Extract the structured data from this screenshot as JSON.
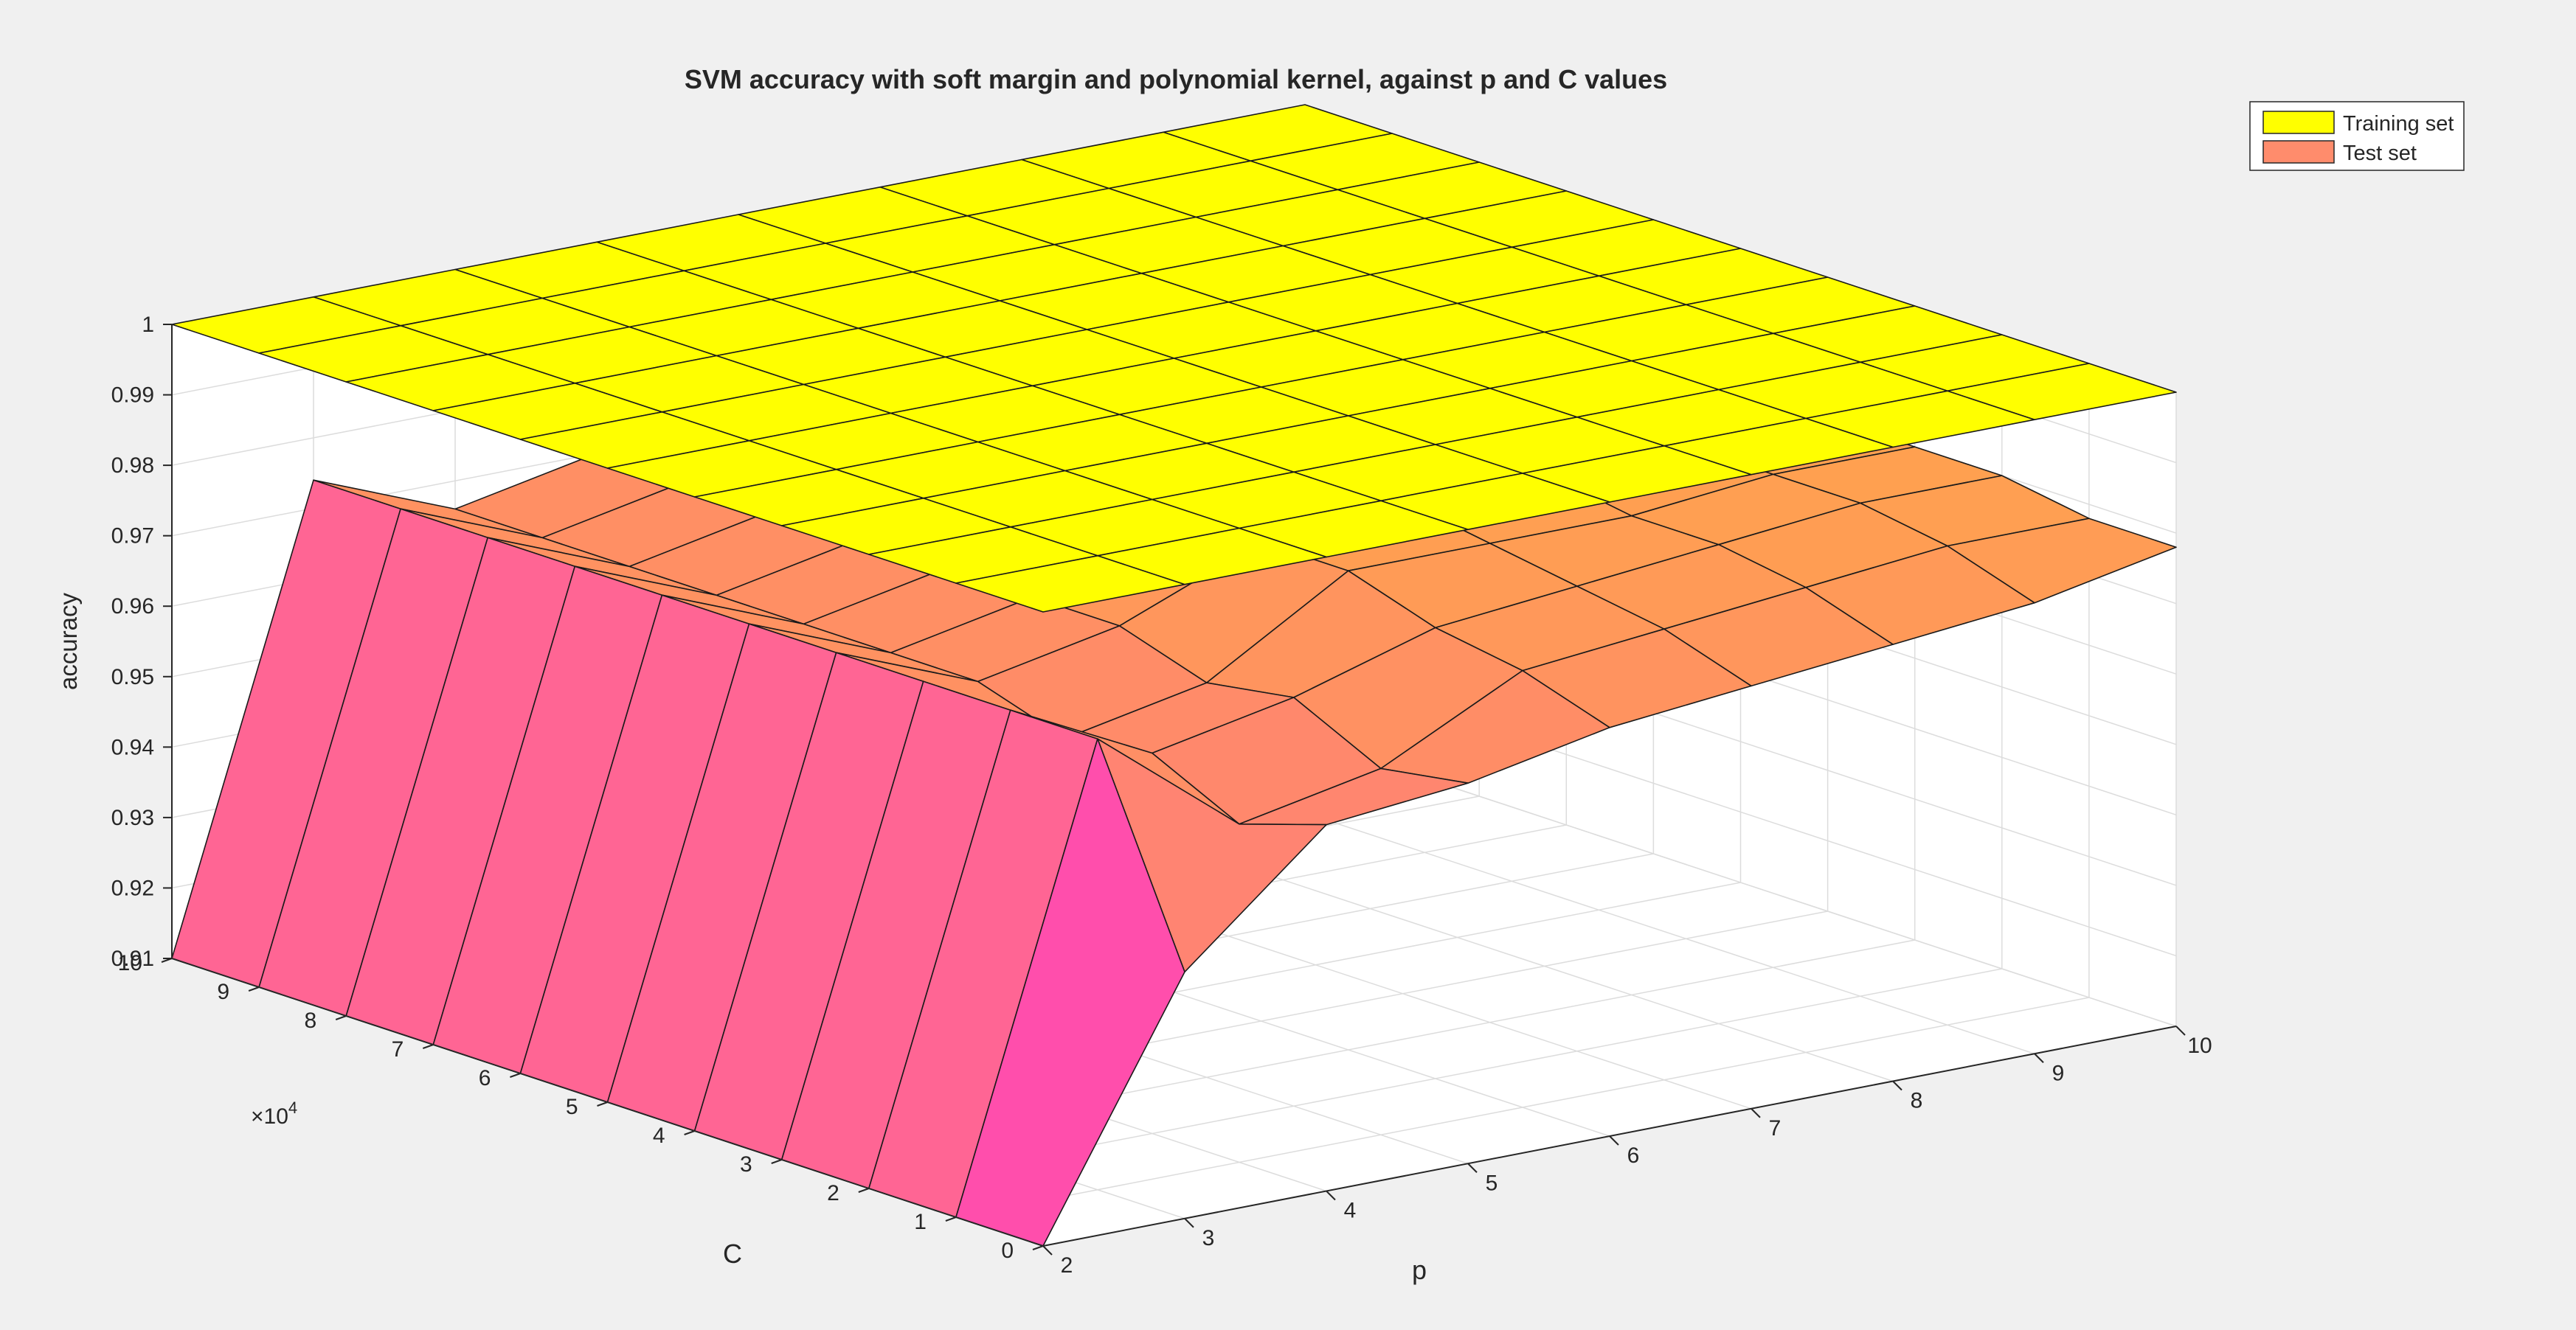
{
  "chart_data": {
    "type": "surface3d",
    "title": "SVM accuracy with soft margin and polynomial kernel, against p and C values",
    "xlabel": "p",
    "ylabel": "C",
    "ylabel_exponent": "×10",
    "ylabel_exponent_power": "4",
    "zlabel": "accuracy",
    "xlim": [
      2,
      10
    ],
    "ylim": [
      0,
      10
    ],
    "zlim": [
      0.91,
      1
    ],
    "x_ticks": [
      "2",
      "3",
      "4",
      "5",
      "6",
      "7",
      "8",
      "9",
      "10"
    ],
    "y_ticks": [
      "0",
      "1",
      "2",
      "3",
      "4",
      "5",
      "6",
      "7",
      "8",
      "9",
      "10"
    ],
    "z_ticks": [
      "0.91",
      "0.92",
      "0.93",
      "0.94",
      "0.95",
      "0.96",
      "0.97",
      "0.98",
      "0.99",
      "1"
    ],
    "grid": true,
    "legend": {
      "position": "top-right",
      "entries": [
        "Training set",
        "Test set"
      ]
    },
    "colors": {
      "training": "#ffff00",
      "test_high": "#ffa050",
      "test_mid": "#ff6f8a",
      "test_low": "#ff00ff",
      "background": "#f0f0f0",
      "axes": "#ffffff",
      "grid": "#dcdcdc"
    },
    "p": [
      2,
      3,
      4,
      5,
      6,
      7,
      8,
      9,
      10
    ],
    "C": [
      1,
      10000,
      20000,
      30000,
      40000,
      50000,
      60000,
      70000,
      80000,
      90000,
      100000
    ],
    "series": [
      {
        "name": "Training set",
        "z": [
          [
            1.0,
            1.0,
            1.0,
            1.0,
            1.0,
            1.0,
            1.0,
            1.0,
            1.0,
            1.0,
            1.0
          ],
          [
            1.0,
            1.0,
            1.0,
            1.0,
            1.0,
            1.0,
            1.0,
            1.0,
            1.0,
            1.0,
            1.0
          ],
          [
            1.0,
            1.0,
            1.0,
            1.0,
            1.0,
            1.0,
            1.0,
            1.0,
            1.0,
            1.0,
            1.0
          ],
          [
            1.0,
            1.0,
            1.0,
            1.0,
            1.0,
            1.0,
            1.0,
            1.0,
            1.0,
            1.0,
            1.0
          ],
          [
            1.0,
            1.0,
            1.0,
            1.0,
            1.0,
            1.0,
            1.0,
            1.0,
            1.0,
            1.0,
            1.0
          ],
          [
            1.0,
            1.0,
            1.0,
            1.0,
            1.0,
            1.0,
            1.0,
            1.0,
            1.0,
            1.0,
            1.0
          ],
          [
            1.0,
            1.0,
            1.0,
            1.0,
            1.0,
            1.0,
            1.0,
            1.0,
            1.0,
            1.0,
            1.0
          ],
          [
            1.0,
            1.0,
            1.0,
            1.0,
            1.0,
            1.0,
            1.0,
            1.0,
            1.0,
            1.0,
            1.0
          ],
          [
            1.0,
            1.0,
            1.0,
            1.0,
            1.0,
            1.0,
            1.0,
            1.0,
            1.0,
            1.0,
            1.0
          ]
        ]
      },
      {
        "name": "Test set",
        "z": [
          [
            0.91,
            0.91,
            0.91,
            0.91,
            0.91,
            0.91,
            0.91,
            0.91,
            0.91,
            0.91,
            0.91
          ],
          [
            0.945,
            0.974,
            0.974,
            0.974,
            0.974,
            0.974,
            0.974,
            0.974,
            0.974,
            0.974,
            0.974
          ],
          [
            0.962,
            0.958,
            0.964,
            0.962,
            0.966,
            0.966,
            0.966,
            0.966,
            0.966,
            0.966,
            0.966
          ],
          [
            0.964,
            0.962,
            0.968,
            0.966,
            0.97,
            0.97,
            0.97,
            0.97,
            0.97,
            0.97,
            0.97
          ],
          [
            0.968,
            0.972,
            0.974,
            0.978,
            0.978,
            0.978,
            0.978,
            0.978,
            0.978,
            0.978,
            0.978
          ],
          [
            0.97,
            0.974,
            0.976,
            0.978,
            0.98,
            0.98,
            0.98,
            0.98,
            0.98,
            0.98,
            0.98
          ],
          [
            0.972,
            0.976,
            0.978,
            0.978,
            0.98,
            0.98,
            0.98,
            0.98,
            0.98,
            0.98,
            0.98
          ],
          [
            0.974,
            0.978,
            0.98,
            0.98,
            0.98,
            0.98,
            0.98,
            0.98,
            0.98,
            0.98,
            0.98
          ],
          [
            0.978,
            0.978,
            0.98,
            0.98,
            0.98,
            0.98,
            0.98,
            0.98,
            0.98,
            0.98,
            0.98
          ]
        ]
      }
    ]
  }
}
